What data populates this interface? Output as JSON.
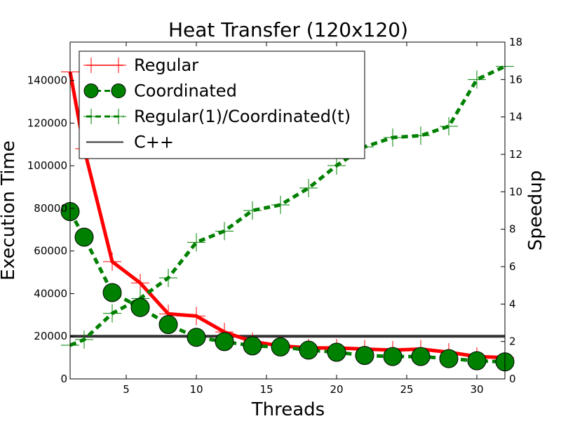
{
  "chart_data": {
    "type": "line",
    "title": "Heat Transfer (120x120)",
    "xlabel": "Threads",
    "ylabel": "Execution Time",
    "y2label": "Speedup",
    "xlim": [
      1,
      32
    ],
    "ylim": [
      0,
      158000
    ],
    "y2lim": [
      0,
      18
    ],
    "xticks": [
      5,
      10,
      15,
      20,
      25,
      30
    ],
    "yticks": [
      0,
      20000,
      40000,
      60000,
      80000,
      100000,
      120000,
      140000
    ],
    "y2ticks": [
      0,
      2,
      4,
      6,
      8,
      10,
      12,
      14,
      16,
      18
    ],
    "grid": false,
    "legend_position": "top-left",
    "series": [
      {
        "name": "Regular",
        "axis": "left",
        "color": "#ff0000",
        "style": "solid",
        "marker": "plus",
        "x": [
          1,
          2,
          4,
          6,
          8,
          10,
          12,
          14,
          16,
          18,
          20,
          22,
          24,
          26,
          28,
          30,
          32
        ],
        "y": [
          144000,
          108000,
          55000,
          45000,
          30500,
          29500,
          22000,
          17500,
          15500,
          14500,
          14500,
          14000,
          13500,
          14000,
          12500,
          10500,
          10000
        ]
      },
      {
        "name": "Coordinated",
        "axis": "left",
        "color": "#008000",
        "style": "dashed",
        "marker": "circle",
        "x": [
          1,
          2,
          4,
          6,
          8,
          10,
          12,
          14,
          16,
          18,
          20,
          22,
          24,
          26,
          28,
          30,
          32
        ],
        "y": [
          78500,
          66500,
          40500,
          33500,
          25500,
          19500,
          17500,
          15500,
          15000,
          13500,
          12500,
          11000,
          10500,
          10500,
          9500,
          8500,
          8000
        ]
      },
      {
        "name": "Regular(1)/Coordinated(t)",
        "axis": "right",
        "color": "#008000",
        "style": "dashed",
        "marker": "plus",
        "x": [
          1,
          2,
          4,
          6,
          8,
          10,
          12,
          14,
          16,
          18,
          20,
          22,
          24,
          26,
          28,
          30,
          32
        ],
        "y": [
          1.8,
          2.1,
          3.5,
          4.3,
          5.4,
          7.3,
          7.9,
          9.0,
          9.3,
          10.2,
          11.4,
          12.4,
          12.9,
          13.0,
          13.5,
          16.0,
          16.7
        ]
      },
      {
        "name": "C++",
        "axis": "left",
        "color": "#333333",
        "style": "solid",
        "marker": "none",
        "x": [
          1,
          32
        ],
        "y": [
          20000,
          20000
        ]
      }
    ]
  }
}
